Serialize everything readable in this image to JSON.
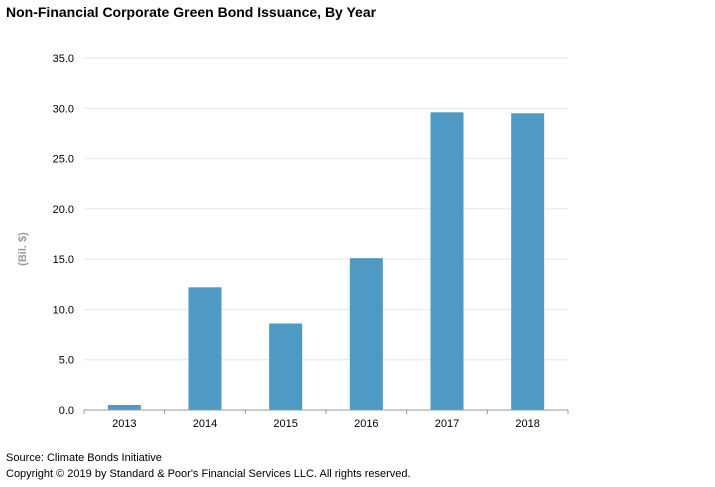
{
  "chart_data": {
    "type": "bar",
    "title": "Non-Financial Corporate Green Bond Issuance, By Year",
    "xlabel": "",
    "ylabel": "(Bil. $)",
    "categories": [
      "2013",
      "2014",
      "2015",
      "2016",
      "2017",
      "2018"
    ],
    "values": [
      0.5,
      12.2,
      8.6,
      15.1,
      29.6,
      29.5
    ],
    "ylim": [
      0,
      35
    ],
    "yticks": [
      "0.0",
      "5.0",
      "10.0",
      "15.0",
      "20.0",
      "25.0",
      "30.0",
      "35.0"
    ],
    "grid": true,
    "legend": "none",
    "colors": {
      "bar": "#4e9ac4",
      "grid": "#e6e6e6",
      "axis": "#999999",
      "ylabel": "#9b9b9b"
    }
  },
  "footer": {
    "source": "Source: Climate Bonds Initiative",
    "copyright": "Copyright © 2019 by Standard & Poor's Financial Services LLC. All rights reserved."
  }
}
